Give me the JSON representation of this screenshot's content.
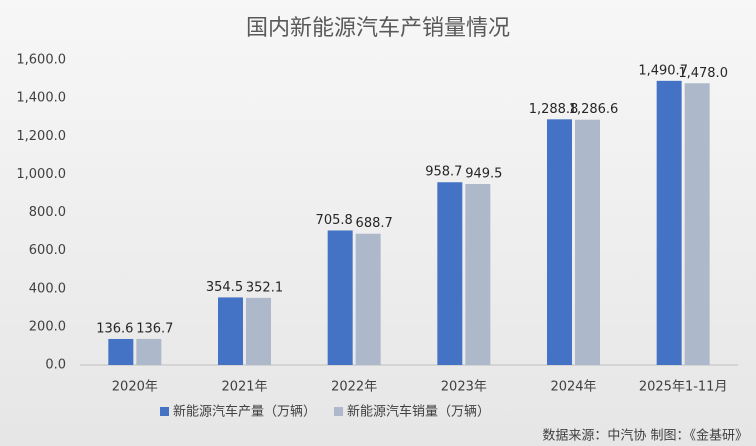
{
  "chart_data": {
    "type": "bar",
    "title": "国内新能源汽车产销量情况",
    "categories": [
      "2020年",
      "2021年",
      "2022年",
      "2023年",
      "2024年",
      "2025年1-11月"
    ],
    "series": [
      {
        "name": "新能源汽车产量（万辆）",
        "color": "#4472c4",
        "values": [
          136.6,
          354.5,
          705.8,
          958.7,
          1288.8,
          1490.7
        ],
        "value_labels": [
          "136.6",
          "354.5",
          "705.8",
          "958.7",
          "1,288.8",
          "1,490.7"
        ]
      },
      {
        "name": "新能源汽车销量（万辆）",
        "color": "#adb9ca",
        "values": [
          136.7,
          352.1,
          688.7,
          949.5,
          1286.6,
          1478.0
        ],
        "value_labels": [
          "136.7",
          "352.1",
          "688.7",
          "949.5",
          "1,286.6",
          "1,478.0"
        ]
      }
    ],
    "ylim": [
      0,
      1600
    ],
    "yticks": [
      {
        "value": 0,
        "label": "0.0"
      },
      {
        "value": 200,
        "label": "200.0"
      },
      {
        "value": 400,
        "label": "400.0"
      },
      {
        "value": 600,
        "label": "600.0"
      },
      {
        "value": 800,
        "label": "800.0"
      },
      {
        "value": 1000,
        "label": "1,000.0"
      },
      {
        "value": 1200,
        "label": "1,200.0"
      },
      {
        "value": 1400,
        "label": "1,400.0"
      },
      {
        "value": 1600,
        "label": "1,600.0"
      }
    ],
    "grid": false,
    "legend": "bottom",
    "source": "数据来源：中汽协   制图：《金基研》"
  }
}
